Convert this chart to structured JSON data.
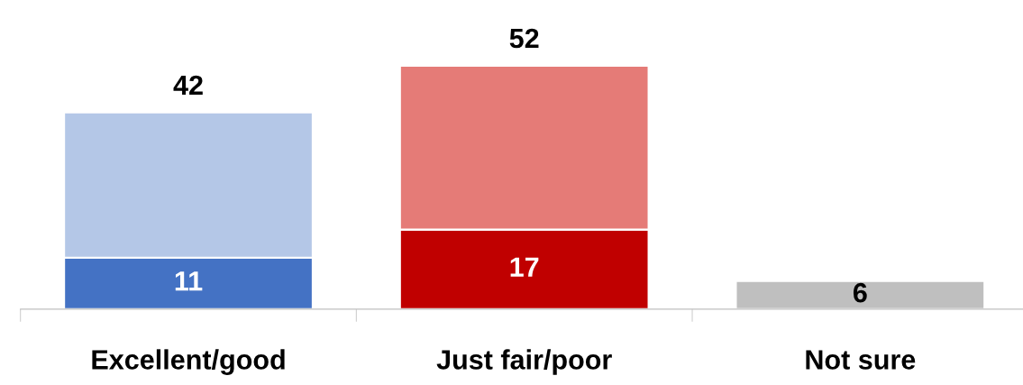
{
  "chart_data": {
    "type": "bar",
    "stacked": true,
    "categories": [
      "Excellent/good",
      "Just fair/poor",
      "Not sure"
    ],
    "series": [
      {
        "colors": [
          "#4472c4",
          "#c00000",
          "#bfbfbf"
        ],
        "values": [
          11,
          17,
          6
        ],
        "value_labels": [
          "11",
          "17",
          "6"
        ]
      },
      {
        "colors": [
          "#b4c7e7",
          "#e57b77",
          "#bfbfbf"
        ],
        "values": [
          31,
          35,
          null
        ]
      }
    ],
    "totals": [
      "42",
      "52",
      null
    ],
    "grid": false,
    "legend": false
  }
}
